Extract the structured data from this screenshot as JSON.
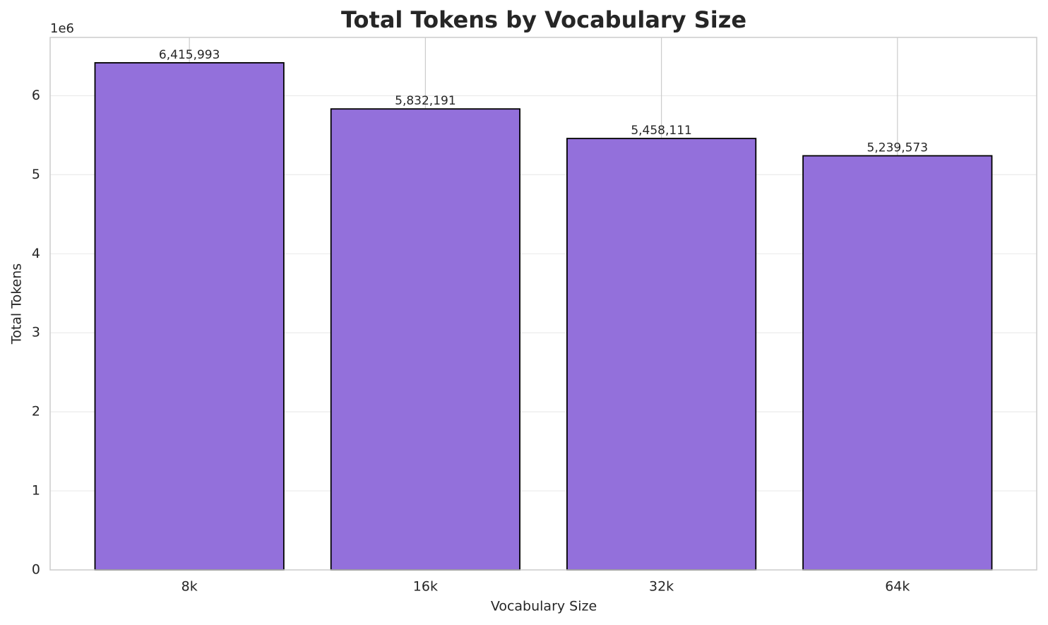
{
  "chart_data": {
    "type": "bar",
    "title": "Total Tokens by Vocabulary Size",
    "x_label": "Vocabulary Size",
    "y_label": "Total Tokens",
    "y_offset_label": "1e6",
    "categories": [
      "8k",
      "16k",
      "32k",
      "64k"
    ],
    "values": [
      6415993,
      5832191,
      5458111,
      5239573
    ],
    "value_labels": [
      "6,415,993",
      "5,832,191",
      "5,458,111",
      "5,239,573"
    ],
    "color": "#9370db",
    "edge_color": "#000000",
    "ylim": [
      0,
      6736793
    ],
    "yticks": [
      {
        "value": 0,
        "label": "0"
      },
      {
        "value": 1000000,
        "label": "1"
      },
      {
        "value": 2000000,
        "label": "2"
      },
      {
        "value": 3000000,
        "label": "3"
      },
      {
        "value": 4000000,
        "label": "4"
      },
      {
        "value": 5000000,
        "label": "5"
      },
      {
        "value": 6000000,
        "label": "6"
      }
    ],
    "grid": true
  }
}
